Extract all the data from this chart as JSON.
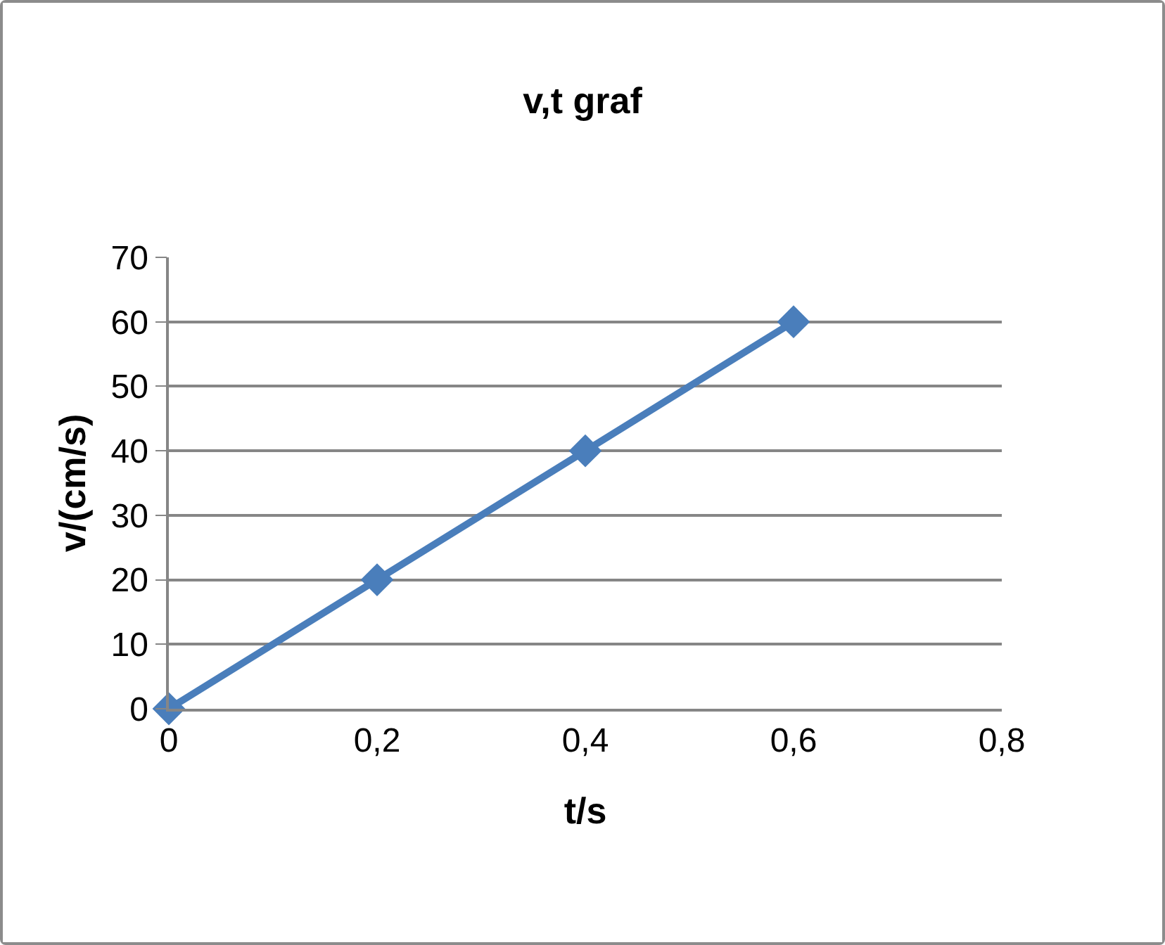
{
  "chart_data": {
    "type": "line",
    "title": "v,t graf",
    "xlabel": "t/s",
    "ylabel": "v/(cm/s)",
    "x": [
      0,
      0.2,
      0.4,
      0.6
    ],
    "series": [
      {
        "color": "#4a7ebb",
        "values": [
          0,
          20,
          40,
          60
        ]
      }
    ],
    "xlim": [
      0,
      0.8
    ],
    "xticks": [
      0,
      {
        "value": 0.2,
        "label": "0,2"
      },
      {
        "value": 0.4,
        "label": "0,4"
      },
      {
        "value": 0.6,
        "label": "0,6"
      },
      {
        "value": 0.8,
        "label": "0,8"
      }
    ],
    "ylim": [
      0,
      70
    ],
    "yticks": [
      0,
      10,
      20,
      30,
      40,
      50,
      60,
      70
    ],
    "grid": "y",
    "legend": false,
    "marker": "diamond",
    "line_style": "solid"
  }
}
